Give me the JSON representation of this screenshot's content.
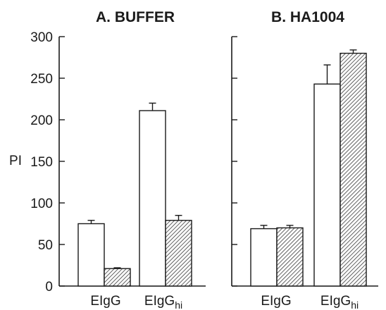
{
  "chart_data": [
    {
      "type": "bar",
      "title": "A. BUFFER",
      "ylabel": "PI",
      "ylim": [
        0,
        300
      ],
      "yticks": [
        0,
        50,
        100,
        150,
        200,
        250,
        300
      ],
      "categories": [
        {
          "base": "EIgG",
          "sub": ""
        },
        {
          "base": "EIgG",
          "sub": "hi"
        }
      ],
      "series": [
        {
          "fill": "open",
          "values": [
            75,
            211
          ],
          "errors": [
            4,
            9
          ]
        },
        {
          "fill": "hatched",
          "values": [
            21,
            79
          ],
          "errors": [
            1,
            6
          ]
        }
      ]
    },
    {
      "type": "bar",
      "title": "B. HA1004",
      "ylim": [
        0,
        300
      ],
      "categories": [
        {
          "base": "EIgG",
          "sub": ""
        },
        {
          "base": "EIgG",
          "sub": "hi"
        }
      ],
      "series": [
        {
          "fill": "open",
          "values": [
            69,
            243
          ],
          "errors": [
            4,
            23
          ]
        },
        {
          "fill": "hatched",
          "values": [
            70,
            280
          ],
          "errors": [
            3,
            4
          ]
        }
      ]
    }
  ],
  "colors": {
    "ink": "#1a1a1a",
    "open_fill": "#ffffff",
    "hatch_line": "#3a3a3a"
  }
}
